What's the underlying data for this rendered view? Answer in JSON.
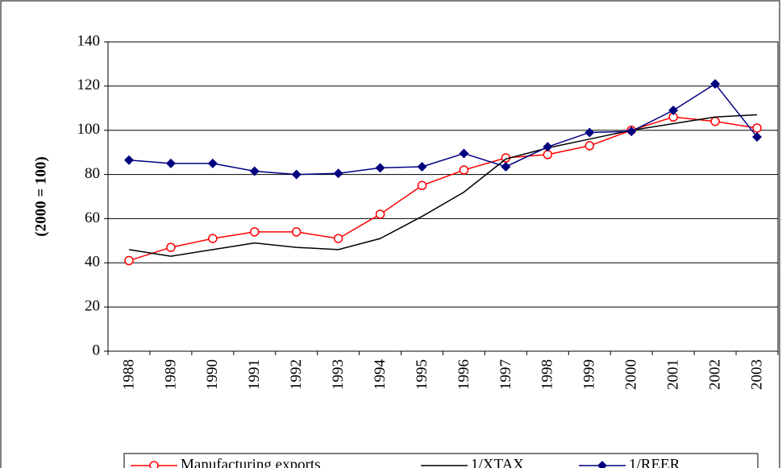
{
  "chart_data": {
    "type": "line",
    "y_label": "(2000 = 100)",
    "categories": [
      "1988",
      "1989",
      "1990",
      "1991",
      "1992",
      "1993",
      "1994",
      "1995",
      "1996",
      "1997",
      "1998",
      "1999",
      "2000",
      "2001",
      "2002",
      "2003"
    ],
    "series": [
      {
        "name": "Manufacturing exports",
        "color": "#ff0000",
        "marker": "circle",
        "values": [
          41,
          47,
          51,
          54,
          54,
          51,
          62,
          75,
          82,
          87.5,
          89,
          93,
          100,
          106,
          104,
          101
        ]
      },
      {
        "name": "1/XTAX",
        "color": "#000000",
        "marker": "none",
        "values": [
          46,
          43,
          46,
          49,
          47,
          46,
          51,
          61,
          72,
          87,
          92,
          96,
          100,
          103,
          106,
          107
        ]
      },
      {
        "name": "1/REER",
        "color": "#000080",
        "marker": "diamond",
        "values": [
          86.5,
          85,
          85,
          81.5,
          80,
          80.5,
          83,
          83.5,
          89.5,
          83.5,
          92.5,
          99,
          99.5,
          109,
          121,
          97
        ]
      }
    ],
    "ylim": [
      0,
      140
    ],
    "yticks": [
      0,
      20,
      40,
      60,
      80,
      100,
      120,
      140
    ],
    "grid": true,
    "legend": "bottom"
  }
}
